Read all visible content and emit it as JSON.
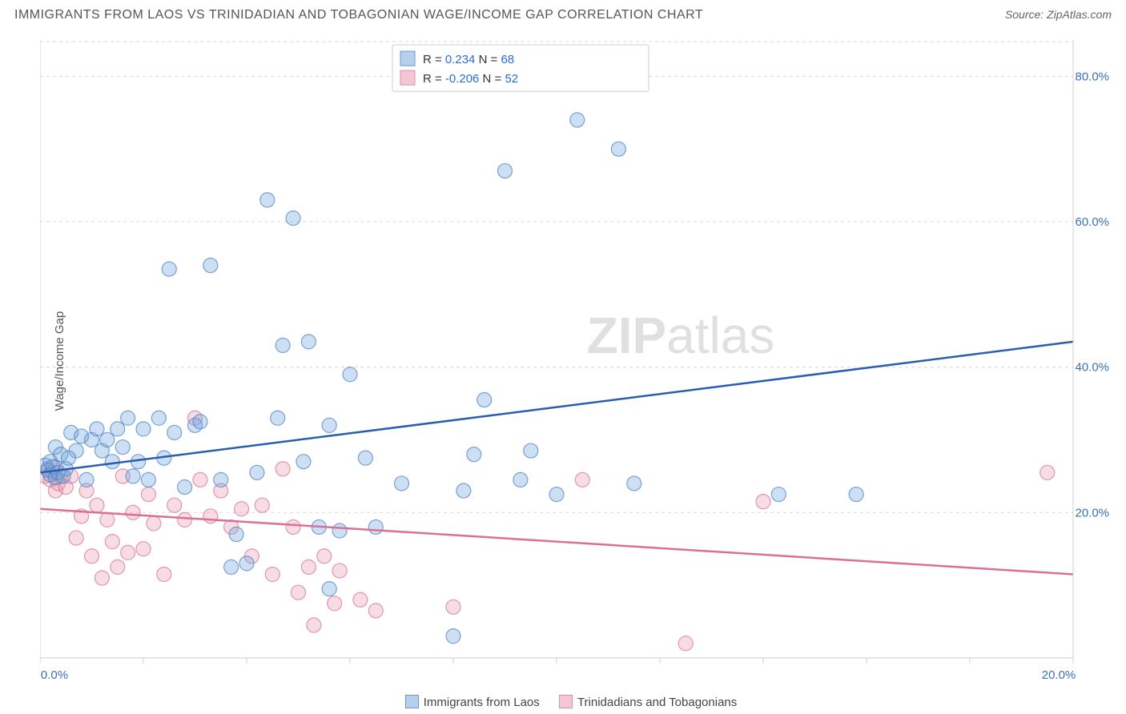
{
  "title": "IMMIGRANTS FROM LAOS VS TRINIDADIAN AND TOBAGONIAN WAGE/INCOME GAP CORRELATION CHART",
  "source_prefix": "Source: ",
  "source_link": "ZipAtlas.com",
  "ylabel": "Wage/Income Gap",
  "watermark_a": "ZIP",
  "watermark_b": "atlas",
  "chart": {
    "type": "scatter",
    "xlim": [
      0,
      20
    ],
    "ylim": [
      0,
      85
    ],
    "x_ticks": [
      0,
      2,
      4,
      6,
      8,
      10,
      12,
      14,
      16,
      18,
      20
    ],
    "x_labels_shown": {
      "0": "0.0%",
      "20": "20.0%"
    },
    "y_gridlines": [
      20,
      40,
      60,
      80
    ],
    "y_labels": [
      "20.0%",
      "40.0%",
      "60.0%",
      "80.0%"
    ],
    "marker_radius": 9,
    "background_color": "#ffffff",
    "grid_color": "#d8d8d8",
    "series_a": {
      "name": "Immigrants from Laos",
      "color_fill": "#6ea3de",
      "color_stroke": "#4a7fc5",
      "R": "0.234",
      "N": "68",
      "trend": {
        "x1": 0,
        "y1": 25.5,
        "x2": 20,
        "y2": 43.5,
        "color": "#2a5db0",
        "width": 2.5
      },
      "points": [
        [
          0.1,
          26.5
        ],
        [
          0.15,
          25.8
        ],
        [
          0.2,
          27.0
        ],
        [
          0.2,
          25.2
        ],
        [
          0.25,
          26.3
        ],
        [
          0.3,
          24.8
        ],
        [
          0.3,
          29.0
        ],
        [
          0.35,
          25.5
        ],
        [
          0.4,
          28.0
        ],
        [
          0.5,
          26.0
        ],
        [
          0.6,
          31.0
        ],
        [
          0.7,
          28.5
        ],
        [
          0.8,
          30.5
        ],
        [
          0.9,
          24.5
        ],
        [
          1.0,
          30.0
        ],
        [
          1.1,
          31.5
        ],
        [
          1.2,
          28.5
        ],
        [
          1.3,
          30.0
        ],
        [
          1.5,
          31.5
        ],
        [
          1.6,
          29.0
        ],
        [
          1.7,
          33.0
        ],
        [
          1.9,
          27.0
        ],
        [
          2.0,
          31.5
        ],
        [
          2.1,
          24.5
        ],
        [
          2.3,
          33.0
        ],
        [
          2.4,
          27.5
        ],
        [
          2.6,
          31.0
        ],
        [
          2.8,
          23.5
        ],
        [
          3.0,
          32.0
        ],
        [
          3.1,
          32.5
        ],
        [
          3.3,
          54.0
        ],
        [
          3.5,
          24.5
        ],
        [
          3.7,
          12.5
        ],
        [
          3.8,
          17.0
        ],
        [
          4.0,
          13.0
        ],
        [
          4.2,
          25.5
        ],
        [
          4.4,
          63.0
        ],
        [
          4.6,
          33.0
        ],
        [
          4.7,
          43.0
        ],
        [
          4.9,
          60.5
        ],
        [
          5.1,
          27.0
        ],
        [
          5.2,
          43.5
        ],
        [
          5.4,
          18.0
        ],
        [
          5.6,
          32.0
        ],
        [
          5.6,
          9.5
        ],
        [
          5.8,
          17.5
        ],
        [
          6.0,
          39.0
        ],
        [
          6.3,
          27.5
        ],
        [
          6.5,
          18.0
        ],
        [
          8.0,
          3.0
        ],
        [
          8.2,
          23.0
        ],
        [
          8.4,
          28.0
        ],
        [
          8.6,
          35.5
        ],
        [
          9.0,
          67.0
        ],
        [
          9.3,
          24.5
        ],
        [
          9.5,
          28.5
        ],
        [
          10.0,
          22.5
        ],
        [
          10.4,
          74.0
        ],
        [
          11.2,
          70.0
        ],
        [
          11.5,
          24.0
        ],
        [
          14.3,
          22.5
        ],
        [
          15.8,
          22.5
        ],
        [
          1.4,
          27.0
        ],
        [
          2.5,
          53.5
        ],
        [
          0.45,
          25.0
        ],
        [
          0.55,
          27.5
        ],
        [
          1.8,
          25.0
        ],
        [
          7.0,
          24.0
        ]
      ]
    },
    "series_b": {
      "name": "Trinidadians and Tobagonians",
      "color_fill": "#e99ab3",
      "color_stroke": "#d56f93",
      "R": "-0.206",
      "N": "52",
      "trend": {
        "x1": 0,
        "y1": 20.5,
        "x2": 20,
        "y2": 11.5,
        "color": "#dd6f95",
        "width": 2.5
      },
      "points": [
        [
          0.1,
          25.0
        ],
        [
          0.15,
          26.0
        ],
        [
          0.2,
          24.5
        ],
        [
          0.25,
          25.5
        ],
        [
          0.3,
          26.2
        ],
        [
          0.3,
          23.0
        ],
        [
          0.35,
          24.0
        ],
        [
          0.4,
          25.0
        ],
        [
          0.5,
          23.5
        ],
        [
          0.6,
          25.0
        ],
        [
          0.7,
          16.5
        ],
        [
          0.8,
          19.5
        ],
        [
          0.9,
          23.0
        ],
        [
          1.0,
          14.0
        ],
        [
          1.1,
          21.0
        ],
        [
          1.2,
          11.0
        ],
        [
          1.3,
          19.0
        ],
        [
          1.4,
          16.0
        ],
        [
          1.5,
          12.5
        ],
        [
          1.6,
          25.0
        ],
        [
          1.7,
          14.5
        ],
        [
          1.8,
          20.0
        ],
        [
          2.0,
          15.0
        ],
        [
          2.1,
          22.5
        ],
        [
          2.2,
          18.5
        ],
        [
          2.4,
          11.5
        ],
        [
          2.6,
          21.0
        ],
        [
          2.8,
          19.0
        ],
        [
          3.0,
          33.0
        ],
        [
          3.1,
          24.5
        ],
        [
          3.3,
          19.5
        ],
        [
          3.5,
          23.0
        ],
        [
          3.7,
          18.0
        ],
        [
          3.9,
          20.5
        ],
        [
          4.1,
          14.0
        ],
        [
          4.3,
          21.0
        ],
        [
          4.5,
          11.5
        ],
        [
          4.7,
          26.0
        ],
        [
          4.9,
          18.0
        ],
        [
          5.0,
          9.0
        ],
        [
          5.2,
          12.5
        ],
        [
          5.3,
          4.5
        ],
        [
          5.5,
          14.0
        ],
        [
          5.7,
          7.5
        ],
        [
          5.8,
          12.0
        ],
        [
          6.2,
          8.0
        ],
        [
          6.5,
          6.5
        ],
        [
          8.0,
          7.0
        ],
        [
          10.5,
          24.5
        ],
        [
          12.5,
          2.0
        ],
        [
          14.0,
          21.5
        ],
        [
          19.5,
          25.5
        ]
      ]
    }
  },
  "legend_labels": {
    "R": "R =",
    "N": "N ="
  }
}
